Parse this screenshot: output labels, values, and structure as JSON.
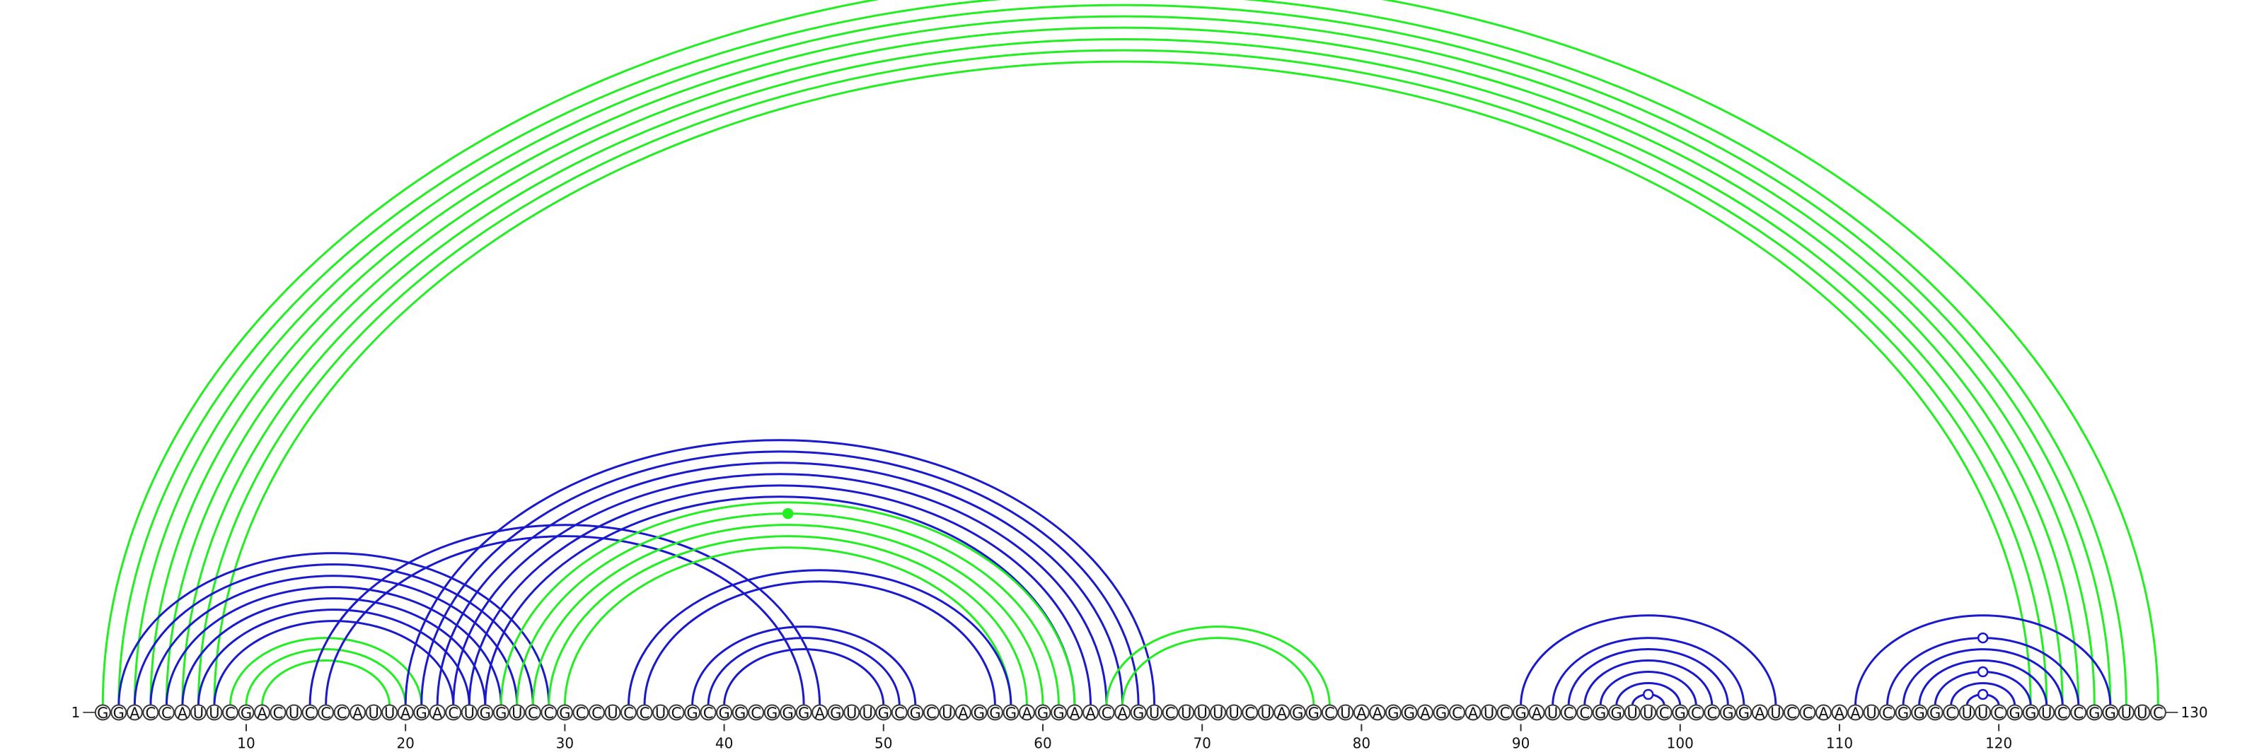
{
  "sequence": "GGACCAUUCGACUCCCAUUAGACUGGUCCGCCUCCUCGCGGCGGGAGUUGCGCUAGGGAGGAACAGUCUUUUCUAGGCUAAGGAGCAUCGAUCCGGUUCGCCGGAUCCAAAUCGGGCUUCGGUCCGGUUC",
  "start_label": "1",
  "end_label": "130",
  "ticks": [
    "10",
    "20",
    "30",
    "40",
    "50",
    "60",
    "70",
    "80",
    "90",
    "100",
    "110",
    "120"
  ],
  "colors": {
    "green": "#22ee22",
    "blue": "#1a1acc"
  },
  "arc_groups": [
    {
      "color": "green",
      "pairs": [
        [
          1,
          130
        ],
        [
          2,
          128
        ],
        [
          3,
          127
        ],
        [
          4,
          126
        ],
        [
          5,
          125
        ],
        [
          6,
          124
        ],
        [
          7,
          123
        ],
        [
          8,
          122
        ]
      ]
    },
    {
      "color": "blue",
      "pairs": [
        [
          2,
          29
        ],
        [
          3,
          28
        ],
        [
          4,
          27
        ],
        [
          5,
          26
        ],
        [
          6,
          25
        ],
        [
          7,
          24
        ],
        [
          8,
          23
        ]
      ]
    },
    {
      "color": "green",
      "pairs": [
        [
          9,
          21
        ],
        [
          10,
          20
        ],
        [
          11,
          19
        ]
      ]
    },
    {
      "color": "blue",
      "pairs": [
        [
          14,
          46
        ],
        [
          15,
          45
        ]
      ]
    },
    {
      "color": "blue",
      "pairs": [
        [
          20,
          67
        ],
        [
          21,
          66
        ],
        [
          22,
          65
        ],
        [
          23,
          64
        ],
        [
          24,
          63
        ],
        [
          25,
          62
        ]
      ]
    },
    {
      "color": "green",
      "pairs": [
        [
          26,
          62
        ],
        [
          27,
          61
        ],
        [
          28,
          60
        ],
        [
          29,
          59
        ],
        [
          30,
          58
        ]
      ]
    },
    {
      "color": "blue",
      "pairs": [
        [
          34,
          58
        ],
        [
          35,
          57
        ]
      ]
    },
    {
      "color": "blue",
      "pairs": [
        [
          38,
          52
        ],
        [
          39,
          51
        ],
        [
          40,
          50
        ]
      ]
    },
    {
      "color": "green",
      "pairs": [
        [
          64,
          78
        ],
        [
          65,
          77
        ]
      ]
    },
    {
      "color": "blue",
      "pairs": [
        [
          90,
          106
        ],
        [
          92,
          104
        ],
        [
          93,
          103
        ],
        [
          94,
          102
        ],
        [
          95,
          101
        ],
        [
          96,
          100
        ],
        [
          97,
          99
        ]
      ]
    },
    {
      "color": "blue",
      "pairs": [
        [
          111,
          127
        ],
        [
          113,
          125
        ],
        [
          114,
          124
        ],
        [
          115,
          123
        ],
        [
          116,
          122
        ],
        [
          117,
          121
        ],
        [
          118,
          120
        ]
      ]
    }
  ],
  "markers": [
    {
      "i": 1,
      "j": 130,
      "color": "green",
      "filled": false
    },
    {
      "i": 27,
      "j": 61,
      "color": "green",
      "filled": true
    },
    {
      "i": 97,
      "j": 99,
      "color": "blue",
      "filled": false
    },
    {
      "i": 118,
      "j": 120,
      "color": "blue",
      "filled": false
    },
    {
      "i": 116,
      "j": 122,
      "color": "blue",
      "filled": false
    },
    {
      "i": 113,
      "j": 125,
      "color": "blue",
      "filled": false
    }
  ]
}
